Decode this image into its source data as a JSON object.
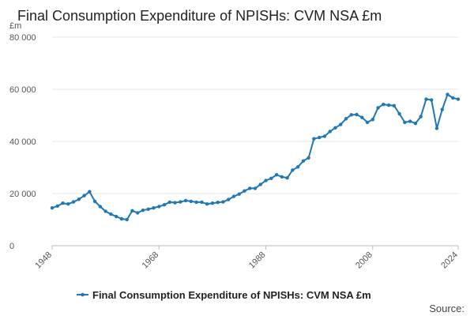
{
  "chart_data": {
    "type": "line",
    "title": "Final Consumption Expenditure of NPISHs: CVM NSA £m",
    "ylabel": "£m",
    "xlabel": "",
    "ylim": [
      0,
      80000
    ],
    "xlim": [
      1948,
      2024
    ],
    "grid": true,
    "legend_position": "bottom-center",
    "color": "#1f77b4",
    "y_ticks": [
      0,
      20000,
      40000,
      60000,
      80000
    ],
    "y_tick_labels": [
      "0",
      "20 000",
      "40 000",
      "60 000",
      "80 000"
    ],
    "x_ticks": [
      1948,
      1968,
      1988,
      2008,
      2024
    ],
    "x_tick_labels": [
      "1948",
      "1968",
      "1988",
      "2008",
      "2024"
    ],
    "series": [
      {
        "name": "Final Consumption Expenditure of NPISHs: CVM NSA £m",
        "x": [
          1948,
          1949,
          1950,
          1951,
          1952,
          1953,
          1954,
          1955,
          1956,
          1957,
          1958,
          1959,
          1960,
          1961,
          1962,
          1963,
          1964,
          1965,
          1966,
          1967,
          1968,
          1969,
          1970,
          1971,
          1972,
          1973,
          1974,
          1975,
          1976,
          1977,
          1978,
          1979,
          1980,
          1981,
          1982,
          1983,
          1984,
          1985,
          1986,
          1987,
          1988,
          1989,
          1990,
          1991,
          1992,
          1993,
          1994,
          1995,
          1996,
          1997,
          1998,
          1999,
          2000,
          2001,
          2002,
          2003,
          2004,
          2005,
          2006,
          2007,
          2008,
          2009,
          2010,
          2011,
          2012,
          2013,
          2014,
          2015,
          2016,
          2017,
          2018,
          2019,
          2020,
          2021,
          2022,
          2023,
          2024
        ],
        "values": [
          14500,
          15200,
          16300,
          16000,
          16800,
          17800,
          19200,
          20700,
          17000,
          15000,
          13200,
          12100,
          11200,
          10300,
          10000,
          13400,
          12600,
          13600,
          14000,
          14500,
          15000,
          15700,
          16700,
          16500,
          16800,
          17300,
          17000,
          16700,
          16700,
          16000,
          16300,
          16600,
          16800,
          17700,
          18900,
          19800,
          21000,
          22000,
          22000,
          23500,
          25000,
          25800,
          27200,
          26400,
          26000,
          29000,
          30200,
          32500,
          33700,
          41000,
          41500,
          42000,
          43800,
          45200,
          46500,
          48700,
          50200,
          50300,
          49200,
          47300,
          48400,
          52900,
          54200,
          53900,
          53700,
          50600,
          47300,
          47700,
          46900,
          49500,
          56200,
          55900,
          45000,
          52200,
          58000,
          56700,
          56200
        ]
      }
    ],
    "source_label": "Source:"
  }
}
